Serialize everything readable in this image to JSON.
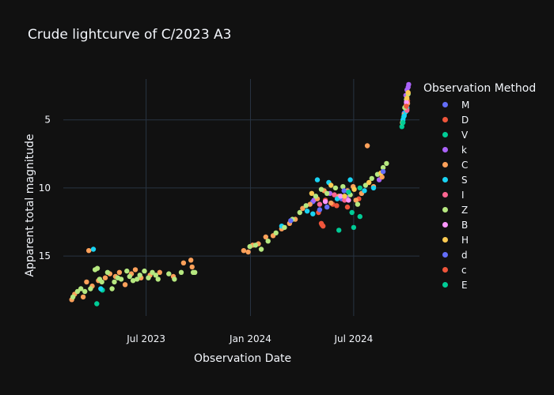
{
  "chart_data": {
    "type": "scatter",
    "title": "Crude lightcurve of C/2023 A3",
    "xlabel": "Observation Date",
    "ylabel": "Apparent total magnitude",
    "legend_title": "Observation Method",
    "legend_position": "right",
    "y_reversed": true,
    "grid": true,
    "xlim": [
      "2023-02-05",
      "2024-10-25"
    ],
    "ylim": [
      2,
      19.4
    ],
    "x_ticks": [
      {
        "date": "2023-07-01",
        "label": "Jul 2023"
      },
      {
        "date": "2024-01-01",
        "label": "Jan 2024"
      },
      {
        "date": "2024-07-01",
        "label": "Jul 2024"
      }
    ],
    "y_ticks": [
      5,
      10,
      15
    ],
    "series": [
      {
        "name": "M",
        "color": "#636efa",
        "points": [
          [
            "2024-04-20",
            11.0
          ],
          [
            "2024-05-15",
            11.4
          ],
          [
            "2024-06-10",
            10.8
          ],
          [
            "2024-07-15",
            10.4
          ],
          [
            "2024-09-28",
            4.5
          ],
          [
            "2024-10-02",
            3.8
          ]
        ]
      },
      {
        "name": "D",
        "color": "#EF553B",
        "points": [
          [
            "2024-04-30",
            11.8
          ],
          [
            "2024-05-05",
            12.6
          ],
          [
            "2024-05-08",
            12.8
          ],
          [
            "2024-05-12",
            10.9
          ],
          [
            "2024-05-25",
            11.2
          ],
          [
            "2024-06-20",
            11.4
          ],
          [
            "2024-07-10",
            10.8
          ],
          [
            "2024-10-02",
            3.9
          ],
          [
            "2024-10-03",
            4.2
          ],
          [
            "2024-10-04",
            3.6
          ]
        ]
      },
      {
        "name": "V",
        "color": "#00cc96",
        "points": [
          [
            "2023-04-05",
            18.5
          ],
          [
            "2023-04-15",
            17.5
          ],
          [
            "2024-06-05",
            13.1
          ],
          [
            "2024-07-01",
            12.9
          ],
          [
            "2024-07-12",
            12.1
          ],
          [
            "2024-06-28",
            11.8
          ],
          [
            "2024-09-24",
            5.5
          ],
          [
            "2024-09-27",
            4.8
          ]
        ]
      },
      {
        "name": "k",
        "color": "#ab63fa",
        "points": [
          [
            "2024-04-22",
            10.9
          ],
          [
            "2024-05-20",
            10.4
          ],
          [
            "2024-06-18",
            10.7
          ],
          [
            "2024-08-15",
            9.4
          ],
          [
            "2024-10-01",
            3.2
          ],
          [
            "2024-10-03",
            2.8
          ],
          [
            "2024-10-05",
            2.6
          ],
          [
            "2024-10-06",
            2.4
          ]
        ]
      },
      {
        "name": "C",
        "color": "#FFA15A",
        "points": [
          [
            "2023-02-20",
            18.2
          ],
          [
            "2023-02-25",
            17.8
          ],
          [
            "2023-03-12",
            18.0
          ],
          [
            "2023-03-18",
            16.9
          ],
          [
            "2023-03-22",
            14.6
          ],
          [
            "2023-03-28",
            17.2
          ],
          [
            "2023-04-08",
            16.8
          ],
          [
            "2023-04-20",
            16.6
          ],
          [
            "2023-04-28",
            16.3
          ],
          [
            "2023-05-08",
            16.5
          ],
          [
            "2023-05-15",
            16.2
          ],
          [
            "2023-05-25",
            17.1
          ],
          [
            "2023-06-05",
            16.3
          ],
          [
            "2023-06-12",
            16.0
          ],
          [
            "2023-06-22",
            16.6
          ],
          [
            "2023-07-08",
            16.4
          ],
          [
            "2023-07-25",
            16.2
          ],
          [
            "2023-08-18",
            16.5
          ],
          [
            "2023-09-05",
            15.5
          ],
          [
            "2023-09-18",
            15.3
          ],
          [
            "2023-09-20",
            15.8
          ],
          [
            "2023-12-20",
            14.6
          ],
          [
            "2023-12-28",
            14.7
          ],
          [
            "2024-01-05",
            14.2
          ],
          [
            "2024-01-15",
            14.1
          ],
          [
            "2024-01-28",
            13.6
          ],
          [
            "2024-02-10",
            13.5
          ],
          [
            "2024-02-25",
            13.0
          ],
          [
            "2024-03-10",
            12.6
          ],
          [
            "2024-03-20",
            12.3
          ],
          [
            "2024-04-02",
            11.5
          ],
          [
            "2024-04-15",
            11.2
          ],
          [
            "2024-04-28",
            10.8
          ],
          [
            "2024-05-10",
            10.2
          ],
          [
            "2024-05-22",
            11.1
          ],
          [
            "2024-06-05",
            10.6
          ],
          [
            "2024-06-20",
            10.2
          ],
          [
            "2024-06-30",
            9.9
          ],
          [
            "2024-07-05",
            10.9
          ],
          [
            "2024-07-15",
            10.4
          ],
          [
            "2024-07-25",
            6.9
          ],
          [
            "2024-08-05",
            9.9
          ],
          [
            "2024-08-20",
            9.2
          ],
          [
            "2024-09-28",
            4.6
          ],
          [
            "2024-10-01",
            4.0
          ],
          [
            "2024-10-04",
            3.8
          ]
        ]
      },
      {
        "name": "S",
        "color": "#19d3f3",
        "points": [
          [
            "2023-03-30",
            14.5
          ],
          [
            "2023-04-12",
            17.4
          ],
          [
            "2024-02-25",
            12.8
          ],
          [
            "2024-04-10",
            11.7
          ],
          [
            "2024-04-20",
            11.9
          ],
          [
            "2024-04-28",
            9.4
          ],
          [
            "2024-05-18",
            9.6
          ],
          [
            "2024-06-02",
            10.8
          ],
          [
            "2024-06-25",
            9.4
          ],
          [
            "2024-07-20",
            10.2
          ],
          [
            "2024-08-05",
            10.0
          ],
          [
            "2024-09-26",
            5.0
          ],
          [
            "2024-09-28",
            4.7
          ],
          [
            "2024-10-01",
            4.4
          ],
          [
            "2024-10-03",
            4.1
          ]
        ]
      },
      {
        "name": "I",
        "color": "#FF6692",
        "points": [
          [
            "2024-05-02",
            11.2
          ],
          [
            "2024-05-28",
            10.5
          ],
          [
            "2024-06-15",
            10.9
          ],
          [
            "2024-10-03",
            4.3
          ]
        ]
      },
      {
        "name": "Z",
        "color": "#B6E880",
        "points": [
          [
            "2023-02-22",
            18.0
          ],
          [
            "2023-03-02",
            17.6
          ],
          [
            "2023-03-08",
            17.4
          ],
          [
            "2023-03-15",
            17.6
          ],
          [
            "2023-03-25",
            17.4
          ],
          [
            "2023-04-02",
            16.0
          ],
          [
            "2023-04-06",
            15.9
          ],
          [
            "2023-04-10",
            16.7
          ],
          [
            "2023-04-14",
            16.9
          ],
          [
            "2023-04-24",
            16.2
          ],
          [
            "2023-05-02",
            17.4
          ],
          [
            "2023-05-06",
            16.9
          ],
          [
            "2023-05-12",
            16.6
          ],
          [
            "2023-05-18",
            16.7
          ],
          [
            "2023-05-28",
            16.1
          ],
          [
            "2023-06-02",
            16.5
          ],
          [
            "2023-06-08",
            16.8
          ],
          [
            "2023-06-15",
            16.7
          ],
          [
            "2023-06-20",
            16.4
          ],
          [
            "2023-06-28",
            16.1
          ],
          [
            "2023-07-05",
            16.6
          ],
          [
            "2023-07-12",
            16.2
          ],
          [
            "2023-07-18",
            16.4
          ],
          [
            "2023-07-22",
            16.7
          ],
          [
            "2023-08-10",
            16.3
          ],
          [
            "2023-08-20",
            16.7
          ],
          [
            "2023-09-01",
            16.2
          ],
          [
            "2023-09-22",
            16.2
          ],
          [
            "2023-09-25",
            16.2
          ],
          [
            "2023-12-31",
            14.3
          ],
          [
            "2024-01-10",
            14.2
          ],
          [
            "2024-01-20",
            14.5
          ],
          [
            "2024-02-01",
            13.9
          ],
          [
            "2024-02-15",
            13.3
          ],
          [
            "2024-03-01",
            12.9
          ],
          [
            "2024-03-15",
            12.3
          ],
          [
            "2024-03-28",
            11.8
          ],
          [
            "2024-04-08",
            11.3
          ],
          [
            "2024-04-25",
            10.6
          ],
          [
            "2024-05-05",
            10.1
          ],
          [
            "2024-05-15",
            10.4
          ],
          [
            "2024-05-30",
            10.0
          ],
          [
            "2024-06-12",
            9.9
          ],
          [
            "2024-06-25",
            10.5
          ],
          [
            "2024-07-08",
            11.2
          ],
          [
            "2024-07-22",
            9.8
          ],
          [
            "2024-08-02",
            9.3
          ],
          [
            "2024-08-12",
            9.0
          ],
          [
            "2024-08-22",
            8.5
          ],
          [
            "2024-08-28",
            8.2
          ],
          [
            "2024-09-25",
            5.2
          ],
          [
            "2024-09-29",
            4.1
          ],
          [
            "2024-10-02",
            3.5
          ],
          [
            "2024-10-05",
            3.1
          ]
        ]
      },
      {
        "name": "B",
        "color": "#FF97FF",
        "points": [
          [
            "2024-05-12",
            11.0
          ],
          [
            "2024-06-08",
            10.6
          ],
          [
            "2024-06-22",
            10.9
          ],
          [
            "2024-10-02",
            3.7
          ]
        ]
      },
      {
        "name": "H",
        "color": "#FECB52",
        "points": [
          [
            "2024-04-18",
            10.4
          ],
          [
            "2024-05-22",
            9.8
          ],
          [
            "2024-06-15",
            10.6
          ],
          [
            "2024-07-02",
            10.1
          ],
          [
            "2024-07-28",
            9.6
          ],
          [
            "2024-08-18",
            8.9
          ],
          [
            "2024-10-03",
            3.4
          ],
          [
            "2024-10-05",
            3.0
          ]
        ]
      },
      {
        "name": "d",
        "color": "#636efa",
        "points": [
          [
            "2024-03-12",
            12.4
          ],
          [
            "2024-05-02",
            11.6
          ],
          [
            "2024-06-14",
            10.2
          ],
          [
            "2024-08-22",
            8.8
          ]
        ]
      },
      {
        "name": "c",
        "color": "#EF553B",
        "points": [
          [
            "2024-05-06",
            12.7
          ],
          [
            "2024-06-01",
            11.3
          ],
          [
            "2024-10-02",
            4.0
          ]
        ]
      },
      {
        "name": "E",
        "color": "#00cc96",
        "points": [
          [
            "2024-06-22",
            10.3
          ],
          [
            "2024-07-12",
            10.0
          ],
          [
            "2024-09-26",
            5.2
          ]
        ]
      }
    ]
  }
}
